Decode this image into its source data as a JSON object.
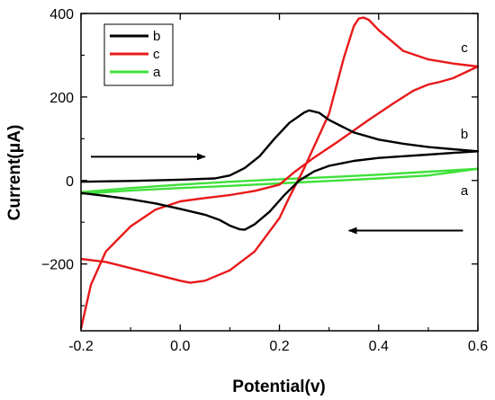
{
  "chart_data": {
    "type": "line",
    "xlabel": "Potential(v)",
    "ylabel": "Current(μA)",
    "xlim": [
      -0.2,
      0.6
    ],
    "ylim": [
      -360,
      400
    ],
    "x_ticks": [
      -0.2,
      0.0,
      0.2,
      0.4,
      0.6
    ],
    "x_tick_labels": [
      "-0.2",
      "0.0",
      "0.2",
      "0.4",
      "0.6"
    ],
    "y_ticks": [
      -200,
      0,
      200,
      400
    ],
    "y_tick_labels": [
      "−200",
      "0",
      "200",
      "400"
    ],
    "grid": false,
    "legend_position": "top-left",
    "series": [
      {
        "name": "b",
        "color": "#000000",
        "label": "b",
        "points": [
          [
            -0.2,
            -3
          ],
          [
            -0.1,
            -1
          ],
          [
            0.0,
            2
          ],
          [
            0.07,
            5
          ],
          [
            0.1,
            12
          ],
          [
            0.13,
            30
          ],
          [
            0.16,
            58
          ],
          [
            0.19,
            100
          ],
          [
            0.22,
            138
          ],
          [
            0.25,
            163
          ],
          [
            0.26,
            168
          ],
          [
            0.28,
            162
          ],
          [
            0.3,
            145
          ],
          [
            0.35,
            115
          ],
          [
            0.4,
            98
          ],
          [
            0.45,
            88
          ],
          [
            0.5,
            80
          ],
          [
            0.55,
            75
          ],
          [
            0.6,
            70
          ],
          [
            0.55,
            66
          ],
          [
            0.5,
            62
          ],
          [
            0.45,
            58
          ],
          [
            0.4,
            54
          ],
          [
            0.35,
            47
          ],
          [
            0.3,
            35
          ],
          [
            0.27,
            22
          ],
          [
            0.24,
            0
          ],
          [
            0.21,
            -35
          ],
          [
            0.18,
            -75
          ],
          [
            0.15,
            -105
          ],
          [
            0.13,
            -118
          ],
          [
            0.12,
            -117
          ],
          [
            0.1,
            -108
          ],
          [
            0.08,
            -95
          ],
          [
            0.05,
            -82
          ],
          [
            0.0,
            -68
          ],
          [
            -0.05,
            -55
          ],
          [
            -0.1,
            -45
          ],
          [
            -0.15,
            -37
          ],
          [
            -0.2,
            -30
          ]
        ]
      },
      {
        "name": "c",
        "color": "#e8191a",
        "label": "c",
        "points": [
          [
            -0.2,
            -188
          ],
          [
            -0.15,
            -195
          ],
          [
            -0.1,
            -210
          ],
          [
            -0.05,
            -225
          ],
          [
            0.0,
            -240
          ],
          [
            0.02,
            -245
          ],
          [
            0.05,
            -240
          ],
          [
            0.1,
            -215
          ],
          [
            0.15,
            -170
          ],
          [
            0.2,
            -90
          ],
          [
            0.22,
            -40
          ],
          [
            0.25,
            30
          ],
          [
            0.3,
            160
          ],
          [
            0.33,
            295
          ],
          [
            0.35,
            370
          ],
          [
            0.36,
            388
          ],
          [
            0.37,
            390
          ],
          [
            0.38,
            385
          ],
          [
            0.4,
            360
          ],
          [
            0.45,
            310
          ],
          [
            0.5,
            290
          ],
          [
            0.55,
            280
          ],
          [
            0.6,
            273
          ],
          [
            0.58,
            262
          ],
          [
            0.55,
            245
          ],
          [
            0.52,
            235
          ],
          [
            0.5,
            230
          ],
          [
            0.47,
            215
          ],
          [
            0.43,
            185
          ],
          [
            0.38,
            145
          ],
          [
            0.32,
            95
          ],
          [
            0.27,
            55
          ],
          [
            0.23,
            20
          ],
          [
            0.2,
            -10
          ],
          [
            0.15,
            -25
          ],
          [
            0.1,
            -35
          ],
          [
            0.05,
            -42
          ],
          [
            0.0,
            -50
          ],
          [
            -0.05,
            -70
          ],
          [
            -0.1,
            -110
          ],
          [
            -0.15,
            -170
          ],
          [
            -0.18,
            -250
          ],
          [
            -0.2,
            -355
          ]
        ]
      },
      {
        "name": "a",
        "color": "#3fe03a",
        "label": "a",
        "points": [
          [
            -0.2,
            -28
          ],
          [
            -0.1,
            -18
          ],
          [
            0.0,
            -10
          ],
          [
            0.1,
            -3
          ],
          [
            0.2,
            3
          ],
          [
            0.3,
            8
          ],
          [
            0.4,
            14
          ],
          [
            0.5,
            21
          ],
          [
            0.6,
            28
          ],
          [
            0.5,
            12
          ],
          [
            0.4,
            5
          ],
          [
            0.3,
            -1
          ],
          [
            0.2,
            -7
          ],
          [
            0.1,
            -13
          ],
          [
            0.0,
            -18
          ],
          [
            -0.1,
            -24
          ],
          [
            -0.2,
            -32
          ]
        ]
      }
    ],
    "annotations": {
      "arrow_forward": {
        "x_start": -0.18,
        "x_end": 0.05,
        "y": 57
      },
      "arrow_backward": {
        "x_start": 0.57,
        "x_end": 0.34,
        "y": -120
      }
    }
  }
}
